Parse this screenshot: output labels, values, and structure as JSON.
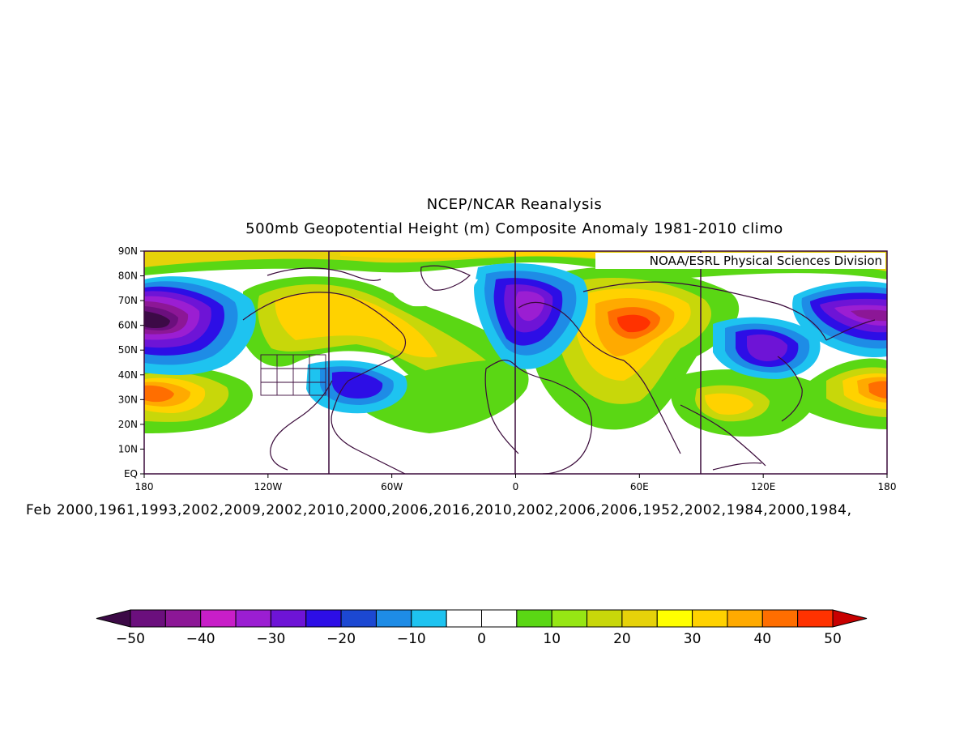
{
  "title_line1": "NCEP/NCAR Reanalysis",
  "title_line2": "500mb Geopotential Height (m) Composite Anomaly 1981-2010 climo",
  "credit": "NOAA/ESRL Physical Sciences Division",
  "caption": "Feb 2000,1961,1993,2002,2009,2002,2010,2000,2006,2016,2010,2002,2006,2006,1952,2002,1984,2000,1984,",
  "lat_ticks": [
    "EQ",
    "10N",
    "20N",
    "30N",
    "40N",
    "50N",
    "60N",
    "70N",
    "80N",
    "90N"
  ],
  "lon_ticks": [
    "180",
    "120W",
    "60W",
    "0",
    "60E",
    "120E",
    "180"
  ],
  "colorbar": {
    "labels": [
      "-50",
      "-40",
      "-30",
      "-20",
      "-10",
      "0",
      "10",
      "20",
      "30",
      "40",
      "50"
    ],
    "colors": [
      "#3c0a46",
      "#6b0f7d",
      "#8c1796",
      "#c81ec8",
      "#9b1ed2",
      "#6e14d6",
      "#2d0ee6",
      "#1c48d2",
      "#1e8ce6",
      "#1ec3f0",
      "#ffffff",
      "#ffffff",
      "#5ad714",
      "#96e614",
      "#c8d70a",
      "#e6d20a",
      "#ffff00",
      "#ffd200",
      "#ffaa00",
      "#ff6e00",
      "#ff3200",
      "#c80000"
    ]
  },
  "chart_data": {
    "type": "heatmap",
    "title": "NCEP/NCAR Reanalysis",
    "subtitle": "500mb Geopotential Height (m) Composite Anomaly 1981-2010 climo",
    "x_range": [
      -180,
      180
    ],
    "y_range": [
      0,
      90
    ],
    "x_ticks": [
      "180",
      "120W",
      "60W",
      "0",
      "60E",
      "120E",
      "180"
    ],
    "y_ticks": [
      "EQ",
      "10N",
      "20N",
      "30N",
      "40N",
      "50N",
      "60N",
      "70N",
      "80N",
      "90N"
    ],
    "vertical_lines_lon": [
      -90,
      0,
      90
    ],
    "anomaly_centers": [
      {
        "lon": -168,
        "lat": 60,
        "value": -50
      },
      {
        "lon": -170,
        "lat": 33,
        "value": 40
      },
      {
        "lon": -82,
        "lat": 34,
        "value": -25
      },
      {
        "lon": 10,
        "lat": 63,
        "value": -30
      },
      {
        "lon": 58,
        "lat": 60,
        "value": 45
      },
      {
        "lon": 120,
        "lat": 50,
        "value": -30
      },
      {
        "lon": 170,
        "lat": 62,
        "value": -40
      },
      {
        "lon": 178,
        "lat": 33,
        "value": 40
      },
      {
        "lon": 105,
        "lat": 28,
        "value": 20
      },
      {
        "lon": -95,
        "lat": 62,
        "value": 20
      }
    ],
    "colorbar_range": [
      -50,
      50
    ]
  }
}
